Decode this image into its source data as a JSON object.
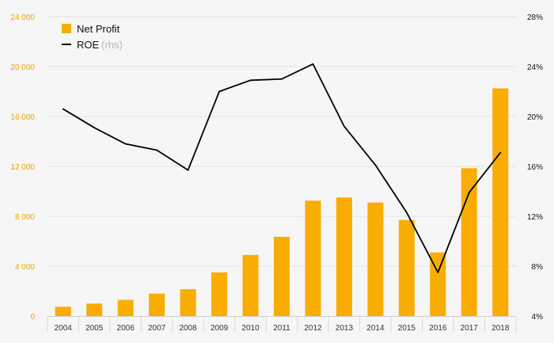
{
  "chart_data": {
    "type": "bar",
    "categories": [
      "2004",
      "2005",
      "2006",
      "2007",
      "2008",
      "2009",
      "2010",
      "2011",
      "2012",
      "2013",
      "2014",
      "2015",
      "2016",
      "2017",
      "2018"
    ],
    "series": [
      {
        "name": "Net Profit",
        "type": "bar",
        "axis": "left",
        "values": [
          750,
          1000,
          1300,
          1800,
          2150,
          3500,
          4900,
          6350,
          9250,
          9500,
          9100,
          7700,
          5100,
          11850,
          18250
        ]
      },
      {
        "name": "ROE",
        "name_suffix": "(rhs)",
        "type": "line",
        "axis": "right",
        "values": [
          20.6,
          19.1,
          17.8,
          17.3,
          15.7,
          22.0,
          22.9,
          23.0,
          24.2,
          19.2,
          16.1,
          12.3,
          7.5,
          13.9,
          17.1
        ]
      }
    ],
    "y_left": {
      "min": 0,
      "max": 24000,
      "ticks": [
        "0",
        "4 000",
        "8 000",
        "12 000",
        "16 000",
        "20 000",
        "24 000"
      ]
    },
    "y_right": {
      "min": 4,
      "max": 28,
      "ticks": [
        "4%",
        "8%",
        "12%",
        "16%",
        "20%",
        "24%",
        "28%"
      ]
    },
    "grid": true,
    "legend_position": "top-left",
    "colors": {
      "bar": "#f8ad00",
      "line": "#000000",
      "left_tick": "#f2a100",
      "right_tick": "#111111",
      "grid": "#e3e3e3",
      "muted": "#b5b5b5"
    }
  }
}
